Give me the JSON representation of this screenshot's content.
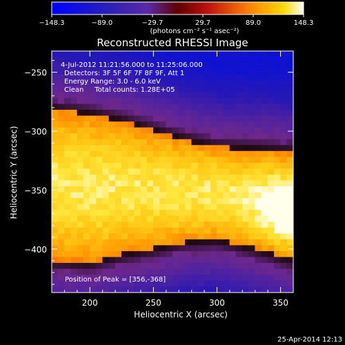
{
  "chart_data": {
    "type": "heatmap",
    "title": "Reconstructed RHESSI Image",
    "xlabel": "Heliocentric X (arcsec)",
    "ylabel": "Heliocentric Y (arcsec)",
    "xlim": [
      170,
      360
    ],
    "ylim": [
      -437,
      -232
    ],
    "xticks": [
      "200",
      "250",
      "300",
      "350"
    ],
    "xtick_values": [
      200,
      250,
      300,
      350
    ],
    "yticks": [
      "-250",
      "-300",
      "-350",
      "-400"
    ],
    "ytick_values": [
      -250,
      -300,
      -350,
      -400
    ],
    "colorbar": {
      "min": -148.3,
      "max": 148.3,
      "tick_labels": [
        "−148.3",
        "−89.0",
        "−29.7",
        "29.7",
        "89.0",
        "148.3"
      ],
      "tick_values": [
        -148.3,
        -89.0,
        -29.7,
        29.7,
        89.0,
        148.3
      ],
      "units": "(photons cm⁻² s⁻¹ asec⁻²)"
    },
    "annotations": [
      "4-Jul-2012 11:21:56.000 to 11:25:06.000",
      "Detectors: 3F 5F 6F 7F 8F 9F, Att 1",
      "Energy Range: 3.0 - 6.0 keV",
      "Clean     Total counts: 1.28E+05"
    ],
    "peak_label": "Position of Peak = [356,-368]",
    "peak": [
      356,
      -368
    ],
    "band": {
      "upper_edge_y": [
        -282,
        -286,
        -292,
        -300,
        -308,
        -314,
        -316,
        -318
      ],
      "lower_edge_y": [
        -410,
        -412,
        -405,
        -400,
        -394,
        -392,
        -400,
        -410
      ],
      "edge_x": [
        170,
        200,
        225,
        250,
        275,
        300,
        330,
        360
      ]
    },
    "colors": [
      "#0000ff",
      "#3a2a9a",
      "#7a2aa0",
      "#c01810",
      "#ff8000",
      "#ffd000",
      "#ffffff"
    ]
  },
  "footer": {
    "date": "25-Apr-2014 12:13"
  }
}
